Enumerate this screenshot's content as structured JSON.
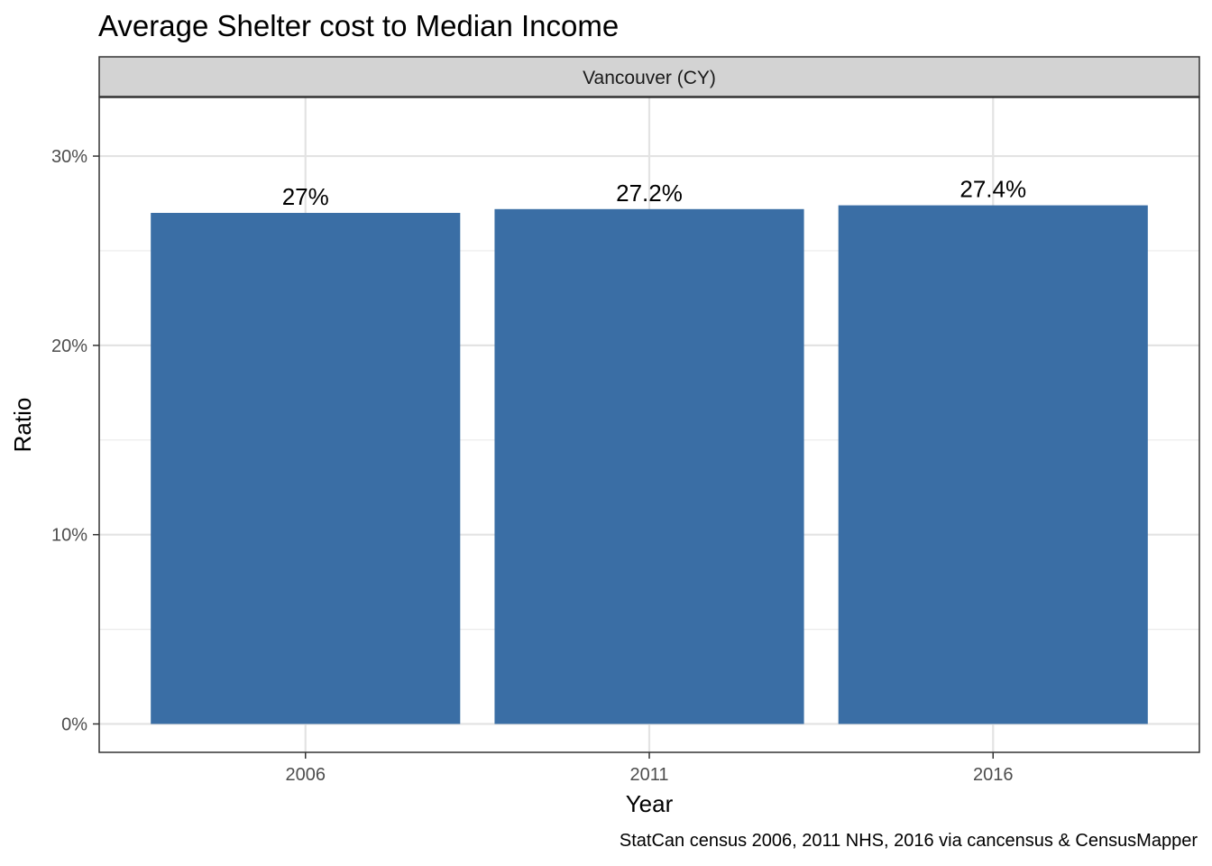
{
  "chart_data": {
    "type": "bar",
    "title": "Average Shelter cost to Median Income",
    "facet": "Vancouver (CY)",
    "categories": [
      "2006",
      "2011",
      "2016"
    ],
    "values": [
      0.27,
      0.272,
      0.274
    ],
    "data_labels": [
      "27%",
      "27.2%",
      "27.4%"
    ],
    "xlabel": "Year",
    "ylabel": "Ratio",
    "ylim": [
      -0.015,
      0.331
    ],
    "yticks": [
      0,
      0.1,
      0.2,
      0.3
    ],
    "ytick_labels": [
      "0%",
      "10%",
      "20%",
      "30%"
    ],
    "caption": "StatCan census 2006, 2011 NHS, 2016 via cancensus & CensusMapper",
    "bar_color": "#3a6ea5",
    "grid": true,
    "legend": "none"
  }
}
